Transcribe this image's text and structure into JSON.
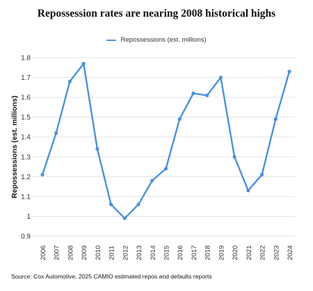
{
  "chart_data": {
    "type": "line",
    "title": "Repossession rates are nearing 2008 historical highs",
    "ylabel": "Repossessions (est. millions)",
    "xlabel": "",
    "categories": [
      "2006",
      "2007",
      "2008",
      "2009",
      "2010",
      "2011",
      "2012",
      "2013",
      "2014",
      "2015",
      "2016",
      "2017",
      "2018",
      "2019",
      "2020",
      "2021",
      "2022",
      "2023",
      "2024"
    ],
    "series": [
      {
        "name": "Repossessions (est. millions)",
        "values": [
          1.21,
          1.42,
          1.68,
          1.77,
          1.34,
          1.06,
          0.99,
          1.06,
          1.18,
          1.24,
          1.49,
          1.62,
          1.61,
          1.7,
          1.3,
          1.13,
          1.21,
          1.49,
          1.73
        ]
      }
    ],
    "ylim": [
      0.9,
      1.8
    ],
    "yticks": [
      "0.9",
      "1",
      "1.1",
      "1.2",
      "1.3",
      "1.4",
      "1.5",
      "1.6",
      "1.7",
      "1.8"
    ],
    "grid": true,
    "legend_position": "top-center",
    "line_color": "#4a90e2",
    "grid_color": "#e3e3e3"
  },
  "source": "Source: Cox Automotive, 2025 CAMIO estimated repos and defaults reports"
}
